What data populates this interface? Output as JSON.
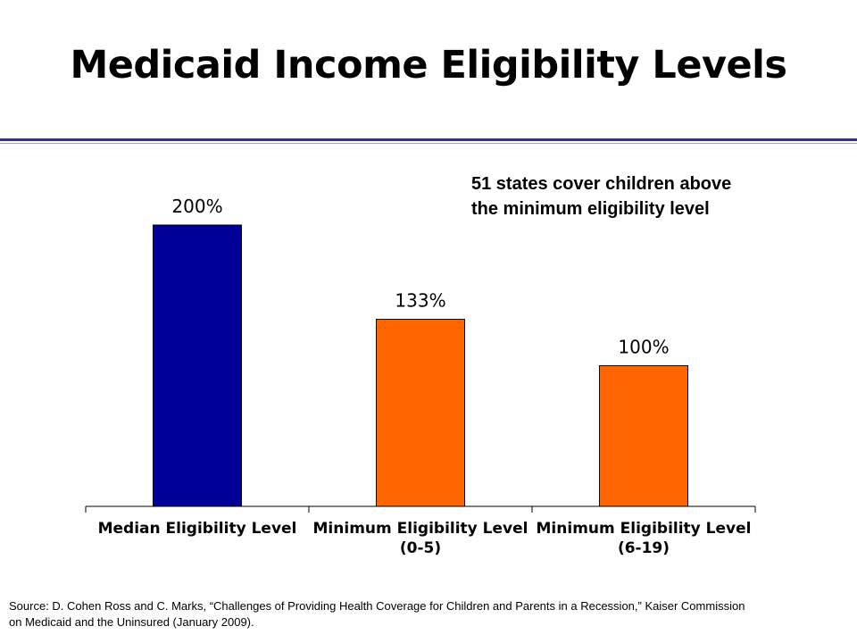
{
  "page": {
    "title": "Medicaid Income Eligibility Levels",
    "annotation_lines": [
      "51 states cover children above",
      "the minimum eligibility level"
    ],
    "source_lines": [
      "Source: D. Cohen Ross and C. Marks, “Challenges of Providing Health Coverage for Children and Parents in a Recession,” Kaiser Commission",
      "on Medicaid and the Uninsured (January 2009)."
    ]
  },
  "colors": {
    "accent_rule": "#2e3192",
    "median_bar": "#000099",
    "minimum_bar": "#ff6600"
  },
  "chart_data": {
    "type": "bar",
    "categories": [
      [
        "Median Eligibility Level"
      ],
      [
        "Minimum Eligibility Level",
        "(0-5)"
      ],
      [
        "Minimum Eligibility Level",
        "(6-19)"
      ]
    ],
    "values": [
      200,
      133,
      100
    ],
    "data_labels": [
      "200%",
      "133%",
      "100%"
    ],
    "bar_colors": [
      "#000099",
      "#ff6600",
      "#ff6600"
    ],
    "ylim": [
      0,
      250
    ],
    "grid": false,
    "legend": "none"
  }
}
